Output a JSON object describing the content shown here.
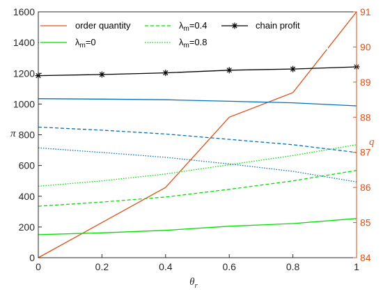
{
  "chart_data": {
    "type": "line",
    "x": [
      0,
      0.2,
      0.4,
      0.6,
      0.8,
      1
    ],
    "xlabel": {
      "main": "θ",
      "sub": "r"
    },
    "ylabel_left": "π",
    "ylabel_right": "q",
    "xlim": [
      0,
      1
    ],
    "ylim_left": [
      0,
      1600
    ],
    "ylim_right": [
      84,
      91
    ],
    "xticks": [
      "0",
      "0.2",
      "0.4",
      "0.6",
      "0.8",
      "1"
    ],
    "yticks_left": [
      "0",
      "200",
      "400",
      "600",
      "800",
      "1000",
      "1200",
      "1400",
      "1600"
    ],
    "yticks_right": [
      "84",
      "85",
      "86",
      "87",
      "88",
      "89",
      "90",
      "91"
    ],
    "grid": false,
    "legend": {
      "items": [
        {
          "key": "order_quantity",
          "label": "order quantity"
        },
        {
          "key": "lm04",
          "main": "λ",
          "sub": "m",
          "tail": "=0.4"
        },
        {
          "key": "chain_profit",
          "label": "chain profit"
        },
        {
          "key": "lm0",
          "main": "λ",
          "sub": "m",
          "tail": "=0"
        },
        {
          "key": "lm08",
          "main": "λ",
          "sub": "m",
          "tail": "=0.8"
        }
      ]
    },
    "series": [
      {
        "name": "order quantity",
        "axis": "right",
        "color": "#D95319",
        "style": "solid",
        "values": [
          84,
          85,
          86,
          88,
          88.7,
          91
        ]
      },
      {
        "name": "chain profit",
        "axis": "left",
        "color": "#000000",
        "style": "solid",
        "marker": "asterisk",
        "values": [
          1185,
          1192,
          1203,
          1220,
          1228,
          1242
        ]
      },
      {
        "name": "λm=0",
        "axis": "left",
        "color": "#00DD00",
        "style": "solid",
        "values": [
          150,
          162,
          178,
          205,
          222,
          255
        ]
      },
      {
        "name": "λm=0.4",
        "axis": "left",
        "color": "#00DD00",
        "style": "dashed",
        "values": [
          335,
          362,
          395,
          445,
          500,
          568
        ]
      },
      {
        "name": "λm=0.8",
        "axis": "left",
        "color": "#00DD00",
        "style": "dotted",
        "values": [
          465,
          500,
          545,
          605,
          665,
          735
        ]
      },
      {
        "axis": "left",
        "color": "#0072BD",
        "style": "solid",
        "values": [
          1035,
          1032,
          1028,
          1018,
          1008,
          988
        ]
      },
      {
        "axis": "left",
        "color": "#0072BD",
        "style": "dashed",
        "values": [
          850,
          830,
          805,
          770,
          735,
          685
        ]
      },
      {
        "axis": "left",
        "color": "#0072BD",
        "style": "dotted",
        "values": [
          715,
          685,
          653,
          610,
          562,
          493
        ]
      }
    ]
  }
}
